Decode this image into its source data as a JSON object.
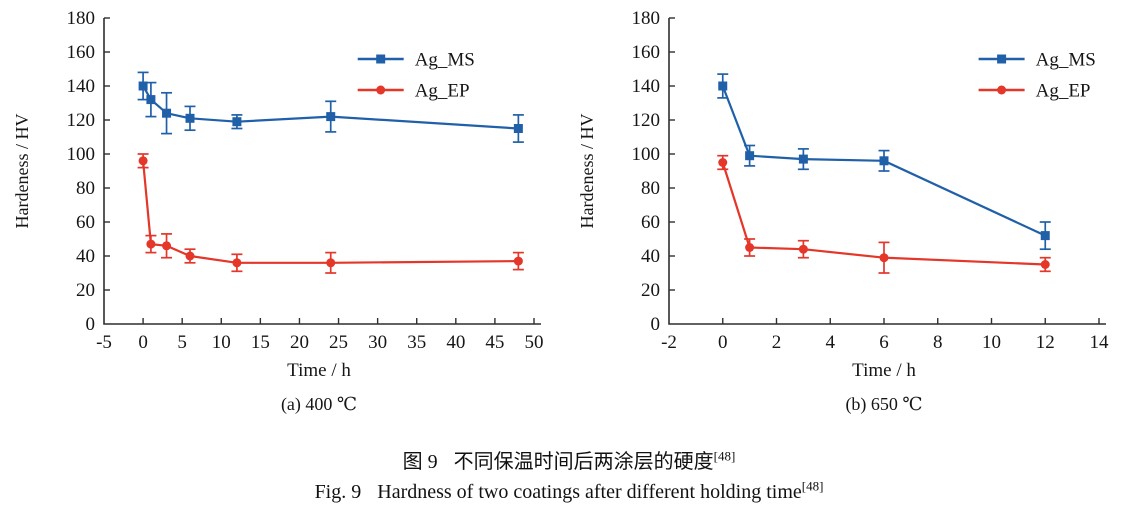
{
  "figure": {
    "captions": {
      "zh": {
        "label": "图 9",
        "text": "不同保温时间后两涂层的硬度",
        "sup": "[48]"
      },
      "en": {
        "label": "Fig. 9",
        "text": "Hardness of two coatings after different holding time",
        "sup": "[48]"
      }
    }
  },
  "style": {
    "axis_color": "#2f2f2f",
    "text_color": "#161616",
    "ms_color": "#2060a8",
    "ep_color": "#e43629"
  },
  "chart_data": [
    {
      "type": "line",
      "subtitle": "(a) 400 ℃",
      "xlabel": "Time / h",
      "ylabel": "Hardeness / HV",
      "xlim": [
        -5,
        50
      ],
      "ylim": [
        0,
        180
      ],
      "xticks": [
        -5,
        0,
        5,
        10,
        15,
        20,
        25,
        30,
        35,
        40,
        45,
        50
      ],
      "yticks": [
        0,
        20,
        40,
        60,
        80,
        100,
        120,
        140,
        160,
        180
      ],
      "grid": false,
      "legend": {
        "position": "top-right",
        "x_frac": 0.59
      },
      "series": [
        {
          "name": "Ag_MS",
          "marker": "square",
          "color": "#2060a8",
          "points": [
            [
              0,
              140,
              8
            ],
            [
              1,
              132,
              10
            ],
            [
              3,
              124,
              12
            ],
            [
              6,
              121,
              7
            ],
            [
              12,
              119,
              4
            ],
            [
              24,
              122,
              9
            ],
            [
              48,
              115,
              8
            ]
          ]
        },
        {
          "name": "Ag_EP",
          "marker": "circle",
          "color": "#e43629",
          "points": [
            [
              0,
              96,
              4
            ],
            [
              1,
              47,
              5
            ],
            [
              3,
              46,
              7
            ],
            [
              6,
              40,
              4
            ],
            [
              12,
              36,
              5
            ],
            [
              24,
              36,
              6
            ],
            [
              48,
              37,
              5
            ]
          ]
        }
      ]
    },
    {
      "type": "line",
      "subtitle": "(b) 650 ℃",
      "xlabel": "Time / h",
      "ylabel": "Hardeness / HV",
      "xlim": [
        -2,
        14
      ],
      "ylim": [
        0,
        180
      ],
      "xticks": [
        -2,
        0,
        2,
        4,
        6,
        8,
        10,
        12,
        14
      ],
      "yticks": [
        0,
        20,
        40,
        60,
        80,
        100,
        120,
        140,
        160,
        180
      ],
      "grid": false,
      "legend": {
        "position": "top-right",
        "x_frac": 0.72
      },
      "series": [
        {
          "name": "Ag_MS",
          "marker": "square",
          "color": "#2060a8",
          "points": [
            [
              0,
              140,
              7
            ],
            [
              1,
              99,
              6
            ],
            [
              3,
              97,
              6
            ],
            [
              6,
              96,
              6
            ],
            [
              12,
              52,
              8
            ]
          ]
        },
        {
          "name": "Ag_EP",
          "marker": "circle",
          "color": "#e43629",
          "points": [
            [
              0,
              95,
              4
            ],
            [
              1,
              45,
              5
            ],
            [
              3,
              44,
              5
            ],
            [
              6,
              39,
              9
            ],
            [
              12,
              35,
              4
            ]
          ]
        }
      ]
    }
  ]
}
